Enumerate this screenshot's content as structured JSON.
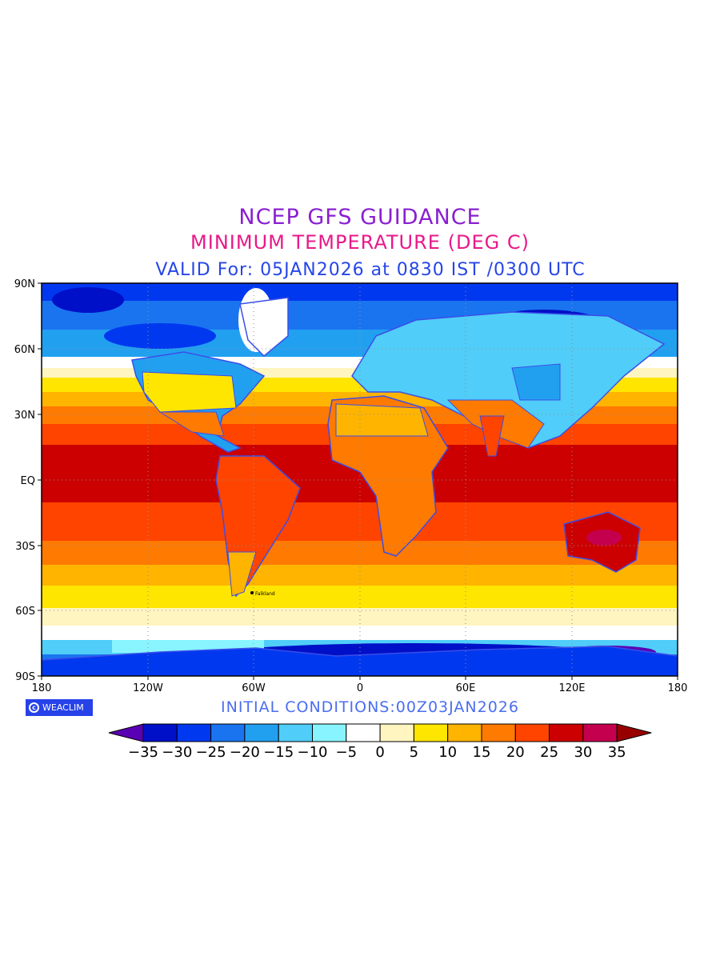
{
  "titles": {
    "line1": "NCEP GFS GUIDANCE",
    "line2": "MINIMUM TEMPERATURE (DEG C)",
    "line3": "VALID For: 05JAN2026 at 0830 IST /0300 UTC"
  },
  "map": {
    "lat_labels": [
      "90N",
      "60N",
      "30N",
      "EQ",
      "30S",
      "60S",
      "90S"
    ],
    "lon_labels": [
      "180",
      "120W",
      "60W",
      "0",
      "60E",
      "120E",
      "180"
    ],
    "lat_range": [
      -90,
      90
    ],
    "lon_range": [
      -180,
      180
    ],
    "grid": "dotted"
  },
  "logo": {
    "text": "WEACLIM",
    "icon": "copyright-icon"
  },
  "initial_conditions": "INITIAL CONDITIONS:00Z03JAN2026",
  "colorbar": {
    "labels": [
      "−35",
      "−30",
      "−25",
      "−20",
      "−15",
      "−10",
      "−5",
      "0",
      "5",
      "10",
      "15",
      "20",
      "25",
      "30",
      "35"
    ],
    "colors": [
      "#5a00b4",
      "#0010c8",
      "#0038f0",
      "#1a74f0",
      "#22a0f0",
      "#50cdf8",
      "#88f4ff",
      "#ffffff",
      "#fff5c0",
      "#ffe600",
      "#ffb400",
      "#ff7a00",
      "#ff4400",
      "#cc0000",
      "#c4004e",
      "#980000"
    ]
  },
  "stations": {
    "Falkland": "Falkland"
  }
}
